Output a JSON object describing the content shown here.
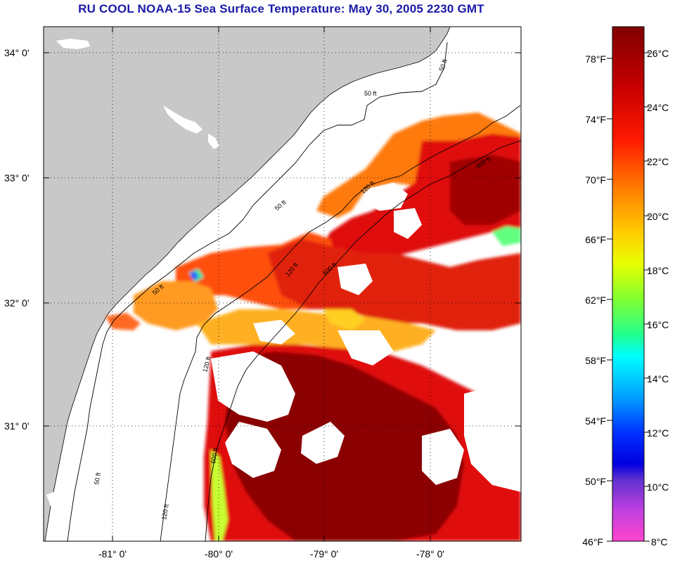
{
  "title": "RU COOL  NOAA-15  Sea Surface Temperature:  May 30, 2005 2230 GMT",
  "lat_labels": [
    "34° 0'",
    "33° 0'",
    "32° 0'",
    "31° 0'"
  ],
  "lon_labels": [
    "-81° 0'",
    "-80° 0'",
    "-79° 0'",
    "-78° 0'"
  ],
  "colorbar": {
    "fahrenheit_labels": [
      "78°F",
      "74°F",
      "70°F",
      "66°F",
      "62°F",
      "58°F",
      "54°F",
      "50°F",
      "46°F"
    ],
    "celsius_labels": [
      "26°C",
      "24°C",
      "22°C",
      "20°C",
      "18°C",
      "16°C",
      "14°C",
      "12°C",
      "10°C",
      "8°C"
    ]
  },
  "contour_labels": [
    "50 ft",
    "120 ft",
    "600 ft"
  ],
  "colors": {
    "title": "#1a1aa8",
    "land": "#c8c8c8",
    "max_temp": "#8b0000",
    "min_temp": "#ff44cc"
  }
}
